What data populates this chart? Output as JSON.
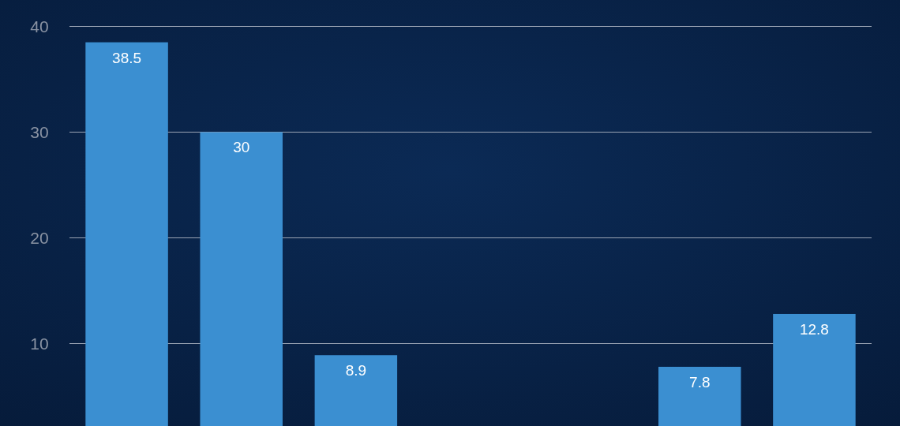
{
  "chart_data": {
    "type": "bar",
    "categories": [
      null,
      null,
      null,
      null,
      null,
      null,
      null
    ],
    "values": [
      38.5,
      30,
      8.9,
      null,
      null,
      7.8,
      12.8
    ],
    "color": "#3b8fd1",
    "ylim": [
      2.2,
      42.5
    ],
    "yticks": [
      10,
      20,
      30,
      40
    ],
    "grid": "y",
    "data_labels": true
  }
}
